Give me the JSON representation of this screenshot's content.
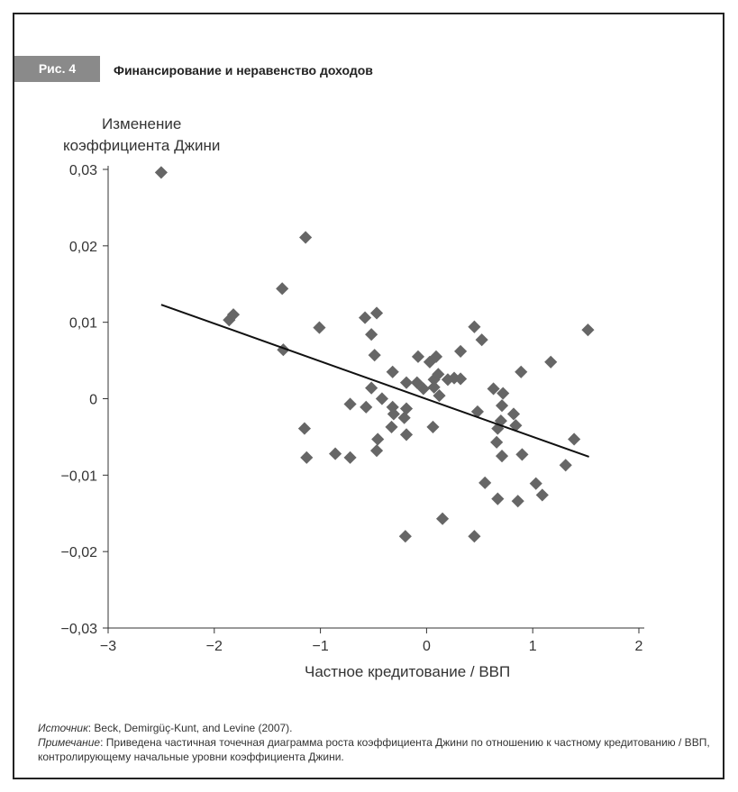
{
  "figure_label": "Рис. 4",
  "title": "Финансирование и неравенство доходов",
  "source_label": "Источник",
  "source_text": ": Beck, Demirgüç-Kunt, and Levine (2007).",
  "note_label": "Примечание",
  "note_text": ": Приведена частичная точечная диаграмма роста коэффициента Джини по отношению к частному кредитованию / ВВП,",
  "note_text2": "контролирующему начальные уровни коэффициента Джини.",
  "chart_data": {
    "type": "scatter",
    "title": "Финансирование и неравенство доходов",
    "xlabel": "Частное кредитование / ВВП",
    "ylabel_line1": "Изменение",
    "ylabel_line2": "коэффициента Джини",
    "xlim": [
      -3,
      2
    ],
    "ylim": [
      -0.03,
      0.03
    ],
    "xticks": [
      -3,
      -2,
      -1,
      0,
      1,
      2
    ],
    "xtick_labels": [
      "−3",
      "−2",
      "−1",
      "0",
      "1",
      "2"
    ],
    "yticks": [
      0.03,
      0.02,
      0.01,
      0,
      -0.01,
      -0.02,
      -0.03
    ],
    "ytick_labels": [
      "0,03",
      "0,02",
      "0,01",
      "0",
      "−0,01",
      "−0,02",
      "−0,03"
    ],
    "marker_color": "#666666",
    "trend_line": {
      "x": [
        -2.5,
        1.53
      ],
      "y": [
        0.0123,
        -0.0076
      ]
    },
    "points": [
      [
        -2.5,
        0.0296
      ],
      [
        -1.14,
        0.0211
      ],
      [
        -1.36,
        0.0144
      ],
      [
        -1.86,
        0.0103
      ],
      [
        -1.82,
        0.011
      ],
      [
        -1.35,
        0.0064
      ],
      [
        -1.01,
        0.0093
      ],
      [
        -0.58,
        0.0106
      ],
      [
        -0.47,
        0.0112
      ],
      [
        -0.52,
        0.0084
      ],
      [
        -0.49,
        0.0057
      ],
      [
        0.45,
        0.0094
      ],
      [
        0.52,
        0.0077
      ],
      [
        1.52,
        0.009
      ],
      [
        0.89,
        0.0035
      ],
      [
        1.17,
        0.0048
      ],
      [
        -1.15,
        -0.0039
      ],
      [
        -1.13,
        -0.0077
      ],
      [
        -0.86,
        -0.0072
      ],
      [
        -0.72,
        -0.0077
      ],
      [
        -0.72,
        -0.0007
      ],
      [
        -0.57,
        -0.0011
      ],
      [
        -0.52,
        0.0014
      ],
      [
        -0.42,
        0
      ],
      [
        -0.32,
        0.0035
      ],
      [
        -0.32,
        -0.0011
      ],
      [
        -0.31,
        -0.002
      ],
      [
        -0.21,
        -0.0025
      ],
      [
        -0.19,
        -0.0013
      ],
      [
        -0.19,
        0.0021
      ],
      [
        -0.08,
        0.0055
      ],
      [
        -0.09,
        0.0021
      ],
      [
        -0.03,
        0.0013
      ],
      [
        0.03,
        0.0048
      ],
      [
        0.09,
        0.0055
      ],
      [
        0.07,
        0.0025
      ],
      [
        0.11,
        0.0032
      ],
      [
        0.07,
        0.0015
      ],
      [
        0.12,
        0.0004
      ],
      [
        0.2,
        0.0025
      ],
      [
        0.26,
        0.0027
      ],
      [
        0.32,
        0.0026
      ],
      [
        0.32,
        0.0062
      ],
      [
        0.63,
        0.0013
      ],
      [
        0.72,
        0.0007
      ],
      [
        0.71,
        -0.0009
      ],
      [
        0.48,
        -0.0017
      ],
      [
        0.82,
        -0.002
      ],
      [
        0.7,
        -0.0029
      ],
      [
        0.67,
        -0.0039
      ],
      [
        0.84,
        -0.0035
      ],
      [
        0.66,
        -0.0057
      ],
      [
        0.71,
        -0.0075
      ],
      [
        0.9,
        -0.0073
      ],
      [
        1.39,
        -0.0053
      ],
      [
        1.31,
        -0.0087
      ],
      [
        0.55,
        -0.011
      ],
      [
        1.03,
        -0.0111
      ],
      [
        1.09,
        -0.0126
      ],
      [
        0.67,
        -0.0131
      ],
      [
        0.86,
        -0.0134
      ],
      [
        0.15,
        -0.0157
      ],
      [
        -0.2,
        -0.018
      ],
      [
        0.45,
        -0.018
      ],
      [
        -0.33,
        -0.0037
      ],
      [
        -0.46,
        -0.0053
      ],
      [
        -0.47,
        -0.0068
      ],
      [
        -0.19,
        -0.0047
      ],
      [
        0.06,
        -0.0037
      ]
    ]
  }
}
